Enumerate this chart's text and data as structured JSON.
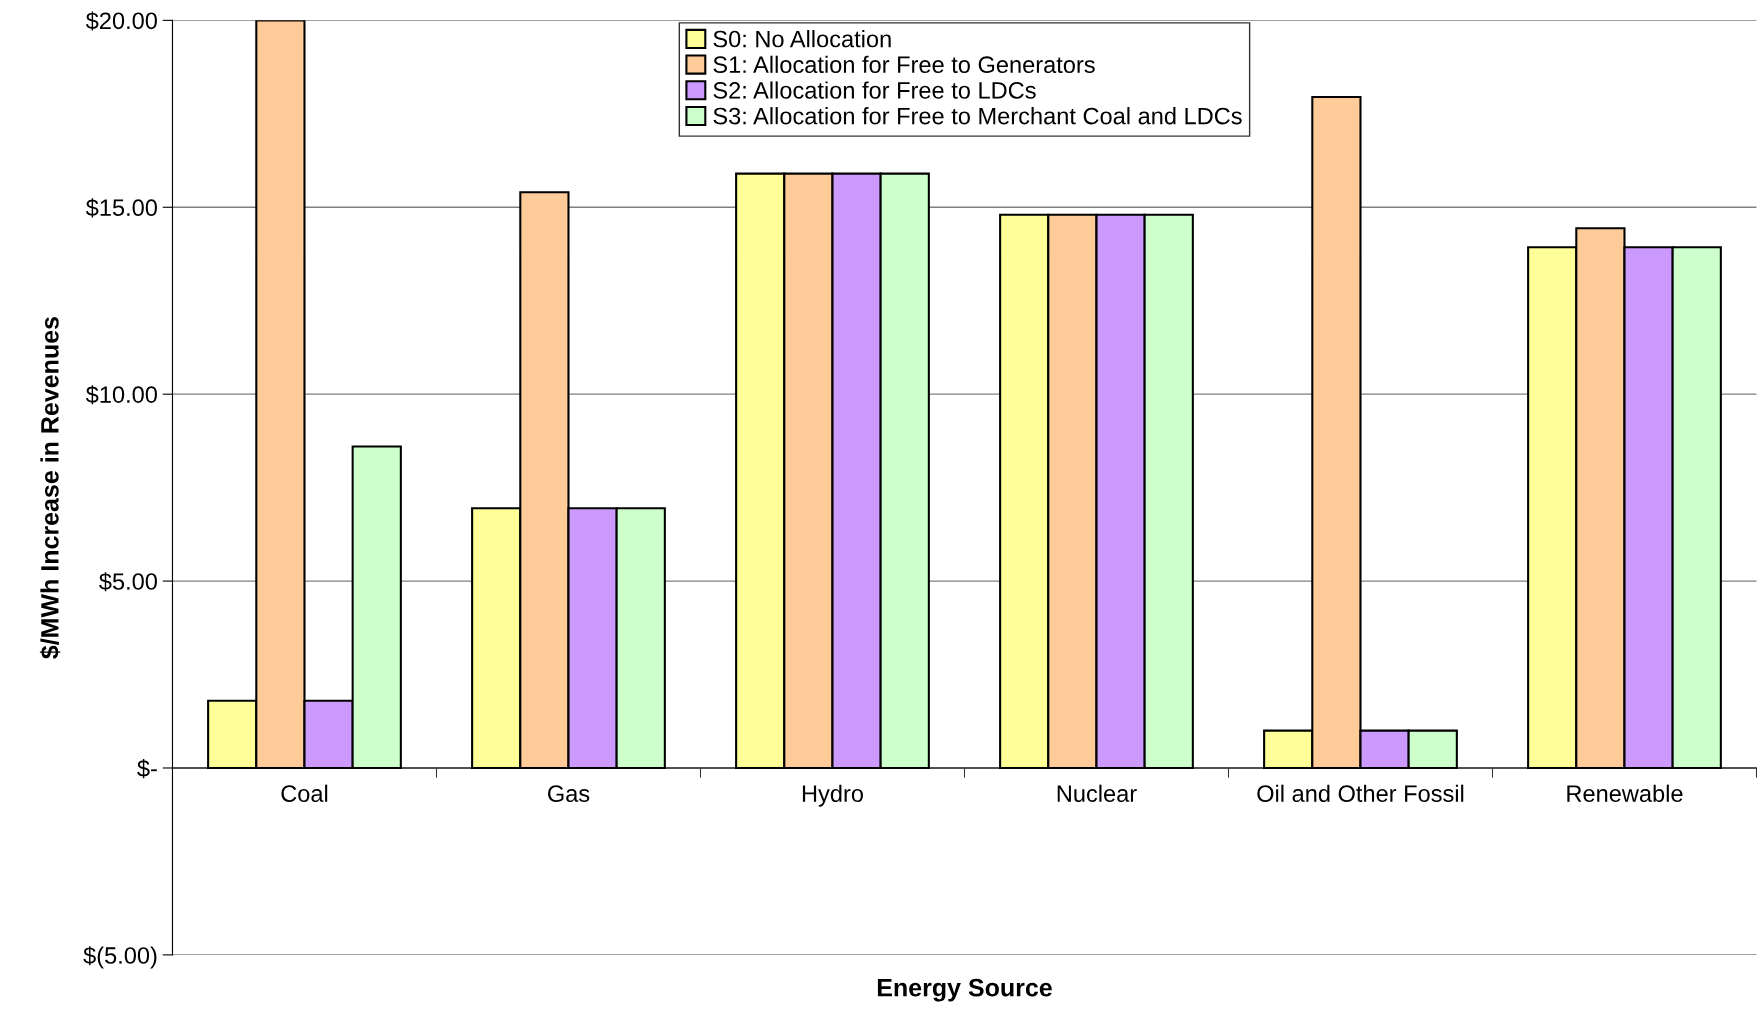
{
  "chart_data": {
    "type": "bar",
    "xlabel": "Energy Source",
    "ylabel": "$/MWh Increase in Revenues",
    "categories": [
      "Coal",
      "Gas",
      "Hydro",
      "Nuclear",
      "Oil and Other Fossil",
      "Renewable"
    ],
    "series": [
      {
        "name": "S0: No Allocation",
        "color": "#ffff99",
        "values": [
          1.8,
          6.95,
          15.9,
          14.8,
          1.0,
          13.93
        ]
      },
      {
        "name": "S1: Allocation for Free to Generators",
        "color": "#ffcc99",
        "values": [
          20,
          15.4,
          15.9,
          14.8,
          17.95,
          14.44
        ]
      },
      {
        "name": "S2: Allocation for Free to LDCs",
        "color": "#cc99ff",
        "values": [
          1.8,
          6.95,
          15.9,
          14.8,
          1.0,
          13.93
        ]
      },
      {
        "name": "S3: Allocation for Free to Merchant Coal and LDCs",
        "color": "#ccffcc",
        "values": [
          8.6,
          6.95,
          15.9,
          14.8,
          1.0,
          13.93
        ]
      }
    ],
    "ylim": [
      -5,
      20
    ],
    "yticks": [
      {
        "value": -5,
        "label": "$(5.00)"
      },
      {
        "value": 0,
        "label": "$-"
      },
      {
        "value": 5,
        "label": "$5.00"
      },
      {
        "value": 10,
        "label": "$10.00"
      },
      {
        "value": 15,
        "label": "$15.00"
      },
      {
        "value": 20,
        "label": "$20.00"
      }
    ],
    "grid": "y",
    "legend": "top"
  }
}
